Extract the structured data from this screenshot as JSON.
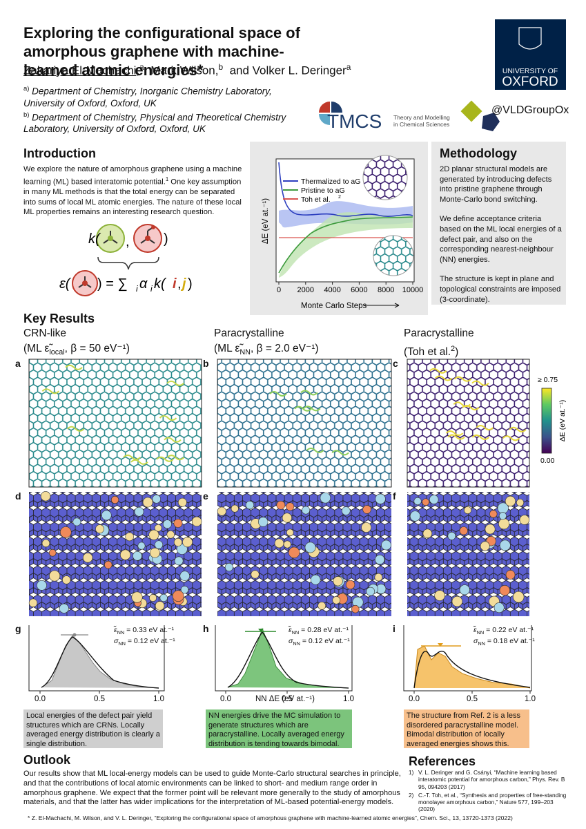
{
  "header": {
    "title": "Exploring the configurational space of amorphous graphene with machine-learned atomic energies*",
    "authors": [
      {
        "name": "Zakariya El-Machachi,",
        "sup": "a"
      },
      {
        "name": "Mark Wilson,",
        "sup": "b"
      },
      {
        "name": "and Volker L. Deringer",
        "sup": "a"
      }
    ],
    "affiliations": [
      {
        "mark": "a)",
        "text": "Department of Chemistry, Inorganic Chemistry Laboratory, University of Oxford, Oxford, UK"
      },
      {
        "mark": "b)",
        "text": "Department of Chemistry, Physical and Theoretical Chemistry Laboratory, University of Oxford, Oxford, UK"
      }
    ],
    "logos": {
      "oxford_top": "UNIVERSITY OF",
      "oxford_name": "OXFORD",
      "tmcs": "TMCS",
      "tmcs_sub": "Theory and Modelling in Chemical Sciences",
      "handle": "@VLDGroupOx"
    }
  },
  "introduction": {
    "heading": "Introduction",
    "text_1": "We explore the nature of amorphous graphene using a machine learning (ML) based interatomic potential.",
    "ref": "1",
    "text_2": " One key assumption in many ML methods is that the total energy can be separated into sums of local ML atomic energies. The nature of these local ML properties remains an interesting research question.",
    "formula": {
      "kernel": "k(",
      "sep": ",",
      "close": ")",
      "energy": "ε(",
      "rhs": ") = ∑",
      "sum_index": "i",
      "alpha": " α",
      "alpha_index": "i",
      "k2": " k(",
      "i": "i",
      "sep2": ",",
      "j": "j",
      "close2": ")"
    }
  },
  "plot": {
    "legend": [
      "Thermalized to aG",
      "Pristine to aG",
      "Toh et al."
    ],
    "legend_ref": "2",
    "ylabel": "ΔE (eV at.⁻¹)",
    "xlim": [
      0,
      10000
    ],
    "xticks": [
      0,
      2000,
      4000,
      6000,
      8000,
      10000
    ],
    "xlabel": "Monte Carlo Steps"
  },
  "methodology": {
    "heading": "Methodology",
    "paragraphs": [
      "2D planar structural models are generated by introducing defects into pristine graphene through Monte-Carlo bond switching.",
      "We define acceptance criteria based on the ML local energies of a defect pair, and also on the corresponding nearest-neighbour (NN) energies.",
      "The structure is kept in plane and topological constraints are imposed (3-coordinate)."
    ]
  },
  "results": {
    "heading": "Key Results",
    "columns": [
      {
        "title": "CRN-like",
        "sub_1": "(ML ε̃",
        "sub_index": "local",
        "sub_2": ", β = 50 eV⁻¹)"
      },
      {
        "title": "Paracrystalline",
        "sub_1": "(ML ε̃",
        "sub_index": "NN",
        "sub_2": ", β = 2.0 eV⁻¹)"
      },
      {
        "title": "Paracrystalline",
        "sub_1": "(Toh et al.",
        "sub_index": "2",
        "sub_2": ")"
      }
    ],
    "panel_letters": [
      "a",
      "b",
      "c",
      "d",
      "e",
      "f",
      "g",
      "h",
      "i"
    ],
    "colorbar": {
      "top": "≥ 0.75",
      "bottom": "0.00",
      "label": "ΔE (eV at.⁻¹)"
    },
    "histograms": [
      {
        "mean_sym": "ε̃",
        "mean_sub": "NN",
        "mean": " = 0.33 eV at.⁻¹",
        "sd_sym": "σ",
        "sd_sub": "NN",
        "sd": " = 0.12 eV at.⁻¹"
      },
      {
        "mean_sym": "ε̃",
        "mean_sub": "NN",
        "mean": " = 0.28 eV at.⁻¹",
        "sd_sym": "σ",
        "sd_sub": "NN",
        "sd": " = 0.12 eV at.⁻¹"
      },
      {
        "mean_sym": "ε̃",
        "mean_sub": "NN",
        "mean": " = 0.22 eV at.⁻¹",
        "sd_sym": "σ",
        "sd_sub": "NN",
        "sd": " = 0.18 eV at.⁻¹"
      }
    ],
    "hist_xlim": [
      0,
      1
    ],
    "hist_xticks": [
      {
        "value": 0,
        "label": "0.0"
      },
      {
        "value": 0.5,
        "label": "0.5"
      },
      {
        "value": 1,
        "label": "1.0"
      }
    ],
    "hist_xlabel": "NN ΔE (eV at.⁻¹)",
    "captions": [
      "Local energies of the defect pair yield structures which are CRNs. Locally averaged energy distribution is clearly a single distribution.",
      "NN energies drive the MC simulation to generate structures which are paracrystalline. Locally averaged energy distribution is tending towards bimodal.",
      "The structure from Ref. 2 is a less disordered paracrystalline model. Bimodal distribution of locally averaged energies shows this."
    ]
  },
  "outlook": {
    "heading": "Outlook",
    "text": "Our results show that ML local-energy models can be used to guide Monte-Carlo structural searches in principle, and that the contributions of local atomic environments can be linked to short- and medium range order in amorphous graphene. We expect that the former point will be relevant more generally to the study of amorphous materials, and that the latter has wider implications for the interpretation of ML-based potential-energy models."
  },
  "references": {
    "heading": "References",
    "items": [
      {
        "num": "1)",
        "text": "V. L. Deringer and G. Csányi, “Machine learning based interatomic potential for amorphous carbon,” Phys. Rev. B 95, 094203 (2017)"
      },
      {
        "num": "2)",
        "text": "C.-T. Toh, et al., “Synthesis and properties of free-standing monolayer amorphous carbon,” Nature 577, 199–203 (2020)"
      }
    ]
  },
  "footnote": "* Z. El-Machachi, M. Wilson, and V. L. Deringer, “Exploring the configurational space of amorphous graphene with machine-learned atomic energies”, Chem. Sci., 13, 13720-1373 (2022)"
}
